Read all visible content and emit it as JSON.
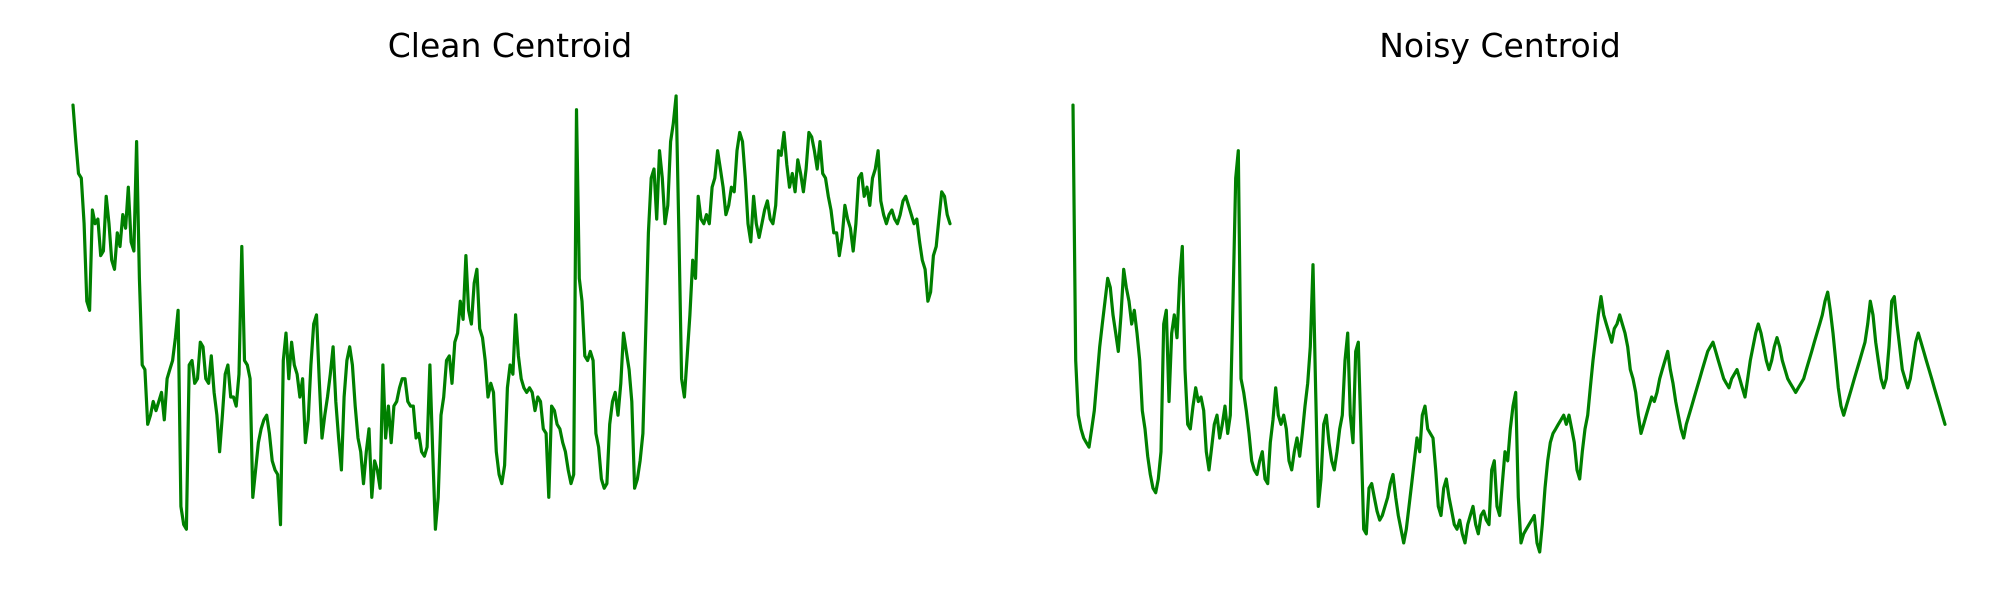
{
  "line_color": "#008000",
  "chart_data": [
    {
      "type": "line",
      "title": "Clean Centroid",
      "xlabel": "",
      "ylabel": "",
      "grid": false,
      "axes_visible": false,
      "ylim": [
        0,
        1
      ],
      "series": [
        {
          "values": [
            0.98,
            0.9,
            0.83,
            0.82,
            0.72,
            0.55,
            0.53,
            0.75,
            0.72,
            0.73,
            0.65,
            0.66,
            0.78,
            0.72,
            0.64,
            0.62,
            0.7,
            0.67,
            0.74,
            0.71,
            0.8,
            0.68,
            0.66,
            0.9,
            0.6,
            0.41,
            0.4,
            0.28,
            0.3,
            0.33,
            0.31,
            0.33,
            0.35,
            0.29,
            0.38,
            0.4,
            0.42,
            0.47,
            0.53,
            0.1,
            0.06,
            0.05,
            0.41,
            0.42,
            0.37,
            0.38,
            0.46,
            0.45,
            0.38,
            0.37,
            0.43,
            0.35,
            0.3,
            0.22,
            0.3,
            0.39,
            0.41,
            0.34,
            0.34,
            0.32,
            0.39,
            0.67,
            0.42,
            0.41,
            0.38,
            0.12,
            0.18,
            0.24,
            0.27,
            0.29,
            0.3,
            0.26,
            0.2,
            0.18,
            0.17,
            0.06,
            0.42,
            0.48,
            0.38,
            0.46,
            0.41,
            0.39,
            0.34,
            0.38,
            0.24,
            0.29,
            0.41,
            0.5,
            0.52,
            0.38,
            0.25,
            0.3,
            0.34,
            0.39,
            0.45,
            0.33,
            0.25,
            0.18,
            0.34,
            0.42,
            0.45,
            0.41,
            0.32,
            0.25,
            0.22,
            0.15,
            0.22,
            0.27,
            0.12,
            0.2,
            0.18,
            0.14,
            0.41,
            0.25,
            0.32,
            0.24,
            0.32,
            0.33,
            0.36,
            0.38,
            0.38,
            0.33,
            0.32,
            0.32,
            0.25,
            0.26,
            0.22,
            0.21,
            0.23,
            0.41,
            0.22,
            0.05,
            0.12,
            0.3,
            0.34,
            0.42,
            0.43,
            0.37,
            0.46,
            0.48,
            0.55,
            0.51,
            0.65,
            0.53,
            0.5,
            0.59,
            0.62,
            0.49,
            0.47,
            0.42,
            0.34,
            0.37,
            0.35,
            0.22,
            0.17,
            0.15,
            0.19,
            0.36,
            0.41,
            0.39,
            0.52,
            0.43,
            0.38,
            0.36,
            0.35,
            0.36,
            0.35,
            0.31,
            0.34,
            0.33,
            0.27,
            0.26,
            0.12,
            0.32,
            0.31,
            0.28,
            0.27,
            0.24,
            0.22,
            0.18,
            0.15,
            0.17,
            0.97,
            0.6,
            0.55,
            0.43,
            0.42,
            0.44,
            0.42,
            0.26,
            0.23,
            0.16,
            0.14,
            0.15,
            0.28,
            0.33,
            0.35,
            0.3,
            0.37,
            0.48,
            0.44,
            0.4,
            0.33,
            0.14,
            0.16,
            0.2,
            0.26,
            0.48,
            0.7,
            0.82,
            0.84,
            0.73,
            0.88,
            0.82,
            0.72,
            0.76,
            0.9,
            0.94,
            1.0,
            0.7,
            0.38,
            0.34,
            0.43,
            0.52,
            0.64,
            0.6,
            0.78,
            0.73,
            0.72,
            0.74,
            0.72,
            0.8,
            0.82,
            0.88,
            0.84,
            0.8,
            0.74,
            0.76,
            0.8,
            0.79,
            0.88,
            0.92,
            0.9,
            0.82,
            0.72,
            0.68,
            0.78,
            0.72,
            0.69,
            0.72,
            0.75,
            0.77,
            0.73,
            0.72,
            0.76,
            0.88,
            0.87,
            0.92,
            0.85,
            0.8,
            0.83,
            0.79,
            0.86,
            0.83,
            0.79,
            0.84,
            0.92,
            0.91,
            0.88,
            0.84,
            0.9,
            0.83,
            0.82,
            0.78,
            0.75,
            0.7,
            0.7,
            0.65,
            0.69,
            0.76,
            0.73,
            0.71,
            0.66,
            0.72,
            0.82,
            0.83,
            0.78,
            0.8,
            0.76,
            0.82,
            0.84,
            0.88,
            0.77,
            0.74,
            0.72,
            0.74,
            0.75,
            0.73,
            0.72,
            0.74,
            0.77,
            0.78,
            0.76,
            0.74,
            0.72,
            0.73,
            0.68,
            0.64,
            0.62,
            0.55,
            0.57,
            0.65,
            0.67,
            0.73,
            0.79,
            0.78,
            0.74,
            0.72
          ]
        }
      ]
    },
    {
      "type": "line",
      "title": "Noisy Centroid",
      "xlabel": "",
      "ylabel": "",
      "grid": false,
      "axes_visible": false,
      "ylim": [
        0,
        1
      ],
      "series": [
        {
          "values": [
            0.98,
            0.42,
            0.3,
            0.27,
            0.25,
            0.24,
            0.23,
            0.27,
            0.31,
            0.38,
            0.45,
            0.5,
            0.55,
            0.6,
            0.58,
            0.52,
            0.48,
            0.44,
            0.52,
            0.62,
            0.58,
            0.55,
            0.5,
            0.53,
            0.48,
            0.42,
            0.31,
            0.27,
            0.21,
            0.17,
            0.14,
            0.13,
            0.16,
            0.22,
            0.5,
            0.53,
            0.33,
            0.48,
            0.52,
            0.47,
            0.6,
            0.67,
            0.4,
            0.28,
            0.27,
            0.32,
            0.36,
            0.33,
            0.34,
            0.31,
            0.22,
            0.18,
            0.23,
            0.28,
            0.3,
            0.25,
            0.28,
            0.32,
            0.26,
            0.3,
            0.55,
            0.82,
            0.88,
            0.38,
            0.35,
            0.31,
            0.26,
            0.2,
            0.18,
            0.17,
            0.2,
            0.22,
            0.16,
            0.15,
            0.24,
            0.29,
            0.36,
            0.3,
            0.28,
            0.3,
            0.27,
            0.2,
            0.18,
            0.22,
            0.25,
            0.21,
            0.26,
            0.32,
            0.37,
            0.45,
            0.63,
            0.35,
            0.1,
            0.16,
            0.28,
            0.3,
            0.24,
            0.2,
            0.18,
            0.22,
            0.27,
            0.3,
            0.42,
            0.48,
            0.3,
            0.24,
            0.44,
            0.46,
            0.26,
            0.05,
            0.04,
            0.14,
            0.15,
            0.12,
            0.09,
            0.07,
            0.08,
            0.1,
            0.12,
            0.15,
            0.17,
            0.12,
            0.08,
            0.05,
            0.02,
            0.05,
            0.1,
            0.15,
            0.2,
            0.25,
            0.22,
            0.3,
            0.32,
            0.27,
            0.26,
            0.25,
            0.18,
            0.1,
            0.08,
            0.14,
            0.16,
            0.12,
            0.09,
            0.06,
            0.05,
            0.07,
            0.04,
            0.02,
            0.06,
            0.08,
            0.1,
            0.06,
            0.04,
            0.08,
            0.09,
            0.07,
            0.06,
            0.18,
            0.2,
            0.1,
            0.08,
            0.15,
            0.22,
            0.2,
            0.27,
            0.32,
            0.35,
            0.12,
            0.02,
            0.04,
            0.05,
            0.06,
            0.07,
            0.08,
            0.02,
            0.0,
            0.06,
            0.14,
            0.2,
            0.24,
            0.26,
            0.27,
            0.28,
            0.29,
            0.3,
            0.28,
            0.3,
            0.27,
            0.24,
            0.18,
            0.16,
            0.22,
            0.27,
            0.3,
            0.36,
            0.42,
            0.47,
            0.52,
            0.56,
            0.52,
            0.5,
            0.48,
            0.46,
            0.49,
            0.5,
            0.52,
            0.5,
            0.48,
            0.45,
            0.4,
            0.38,
            0.35,
            0.3,
            0.26,
            0.28,
            0.3,
            0.32,
            0.34,
            0.33,
            0.35,
            0.38,
            0.4,
            0.42,
            0.44,
            0.4,
            0.37,
            0.33,
            0.3,
            0.27,
            0.25,
            0.28,
            0.3,
            0.32,
            0.34,
            0.36,
            0.38,
            0.4,
            0.42,
            0.44,
            0.45,
            0.46,
            0.44,
            0.42,
            0.4,
            0.38,
            0.37,
            0.36,
            0.38,
            0.39,
            0.4,
            0.38,
            0.36,
            0.34,
            0.38,
            0.42,
            0.45,
            0.48,
            0.5,
            0.48,
            0.45,
            0.42,
            0.4,
            0.42,
            0.45,
            0.47,
            0.45,
            0.42,
            0.4,
            0.38,
            0.37,
            0.36,
            0.35,
            0.36,
            0.37,
            0.38,
            0.4,
            0.42,
            0.44,
            0.46,
            0.48,
            0.5,
            0.52,
            0.55,
            0.57,
            0.53,
            0.48,
            0.42,
            0.36,
            0.32,
            0.3,
            0.32,
            0.34,
            0.36,
            0.38,
            0.4,
            0.42,
            0.44,
            0.46,
            0.5,
            0.55,
            0.52,
            0.46,
            0.42,
            0.38,
            0.36,
            0.38,
            0.45,
            0.55,
            0.56,
            0.5,
            0.45,
            0.4,
            0.38,
            0.36,
            0.38,
            0.42,
            0.46,
            0.48,
            0.46,
            0.44,
            0.42,
            0.4,
            0.38,
            0.36,
            0.34,
            0.32,
            0.3,
            0.28
          ]
        }
      ]
    }
  ]
}
